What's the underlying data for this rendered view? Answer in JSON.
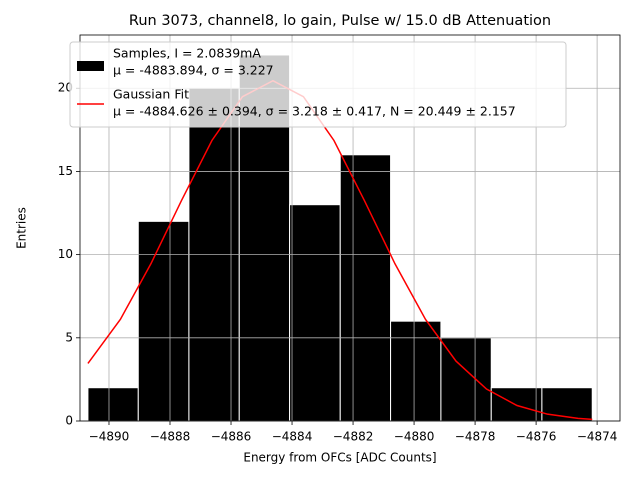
{
  "chart_data": {
    "type": "histogram",
    "title": "Run 3073, channel8, lo gain, Pulse w/ 15.0 dB Attenuation",
    "x_label": "Energy from OFCs [ADC Counts]",
    "y_label": "Entries",
    "bins": [
      -4890.69,
      -4889.04,
      -4887.38,
      -4885.73,
      -4884.08,
      -4882.42,
      -4880.77,
      -4879.12,
      -4877.47,
      -4875.81,
      -4874.16
    ],
    "series": [
      {
        "name": "Samples, I = 2.0839mA",
        "stats": "μ = -4883.894, σ = 3.227",
        "type": "histogram",
        "color": "#000000",
        "values": [
          2,
          12,
          20,
          22,
          13,
          16,
          6,
          5,
          2,
          2
        ]
      },
      {
        "name": "Gaussian Fit",
        "stats": "μ = -4884.626 ± 0.394, σ = 3.218 ± 0.417, N = 20.449 ± 2.157",
        "type": "line",
        "color": "#ff0000",
        "x": [
          -4890.69,
          -4889.626,
          -4888.626,
          -4887.626,
          -4886.626,
          -4885.626,
          -4884.626,
          -4883.626,
          -4882.626,
          -4881.626,
          -4880.626,
          -4879.626,
          -4878.626,
          -4877.626,
          -4876.626,
          -4875.626,
          -4874.626,
          -4874.16
        ],
        "values": [
          3.46,
          6.11,
          9.45,
          13.24,
          16.86,
          19.49,
          20.45,
          19.49,
          16.86,
          13.24,
          9.45,
          6.11,
          3.6,
          1.92,
          0.93,
          0.41,
          0.16,
          0.1
        ]
      }
    ],
    "xlim": [
      -4890.95,
      -4873.25
    ],
    "ylim": [
      0,
      23.2
    ],
    "xticks": [
      {
        "value": -4890,
        "label": "−4890"
      },
      {
        "value": -4888,
        "label": "−4888"
      },
      {
        "value": -4886,
        "label": "−4886"
      },
      {
        "value": -4884,
        "label": "−4884"
      },
      {
        "value": -4882,
        "label": "−4882"
      },
      {
        "value": -4880,
        "label": "−4880"
      },
      {
        "value": -4878,
        "label": "−4878"
      },
      {
        "value": -4876,
        "label": "−4876"
      },
      {
        "value": -4874,
        "label": "−4874"
      }
    ],
    "yticks": [
      0,
      5,
      10,
      15,
      20
    ],
    "grid": true,
    "legend": "upper left"
  }
}
